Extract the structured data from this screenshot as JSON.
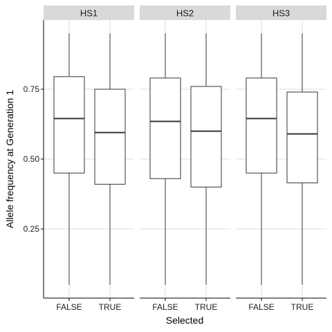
{
  "chart_data": {
    "type": "boxplot",
    "xlabel": "Selected",
    "ylabel": "Allele frequency at Generation 1",
    "ylim": [
      0.0,
      0.99
    ],
    "yticks": [
      0.25,
      0.5,
      0.75
    ],
    "ytick_labels": [
      "0.25",
      "0.50",
      "0.75"
    ],
    "categories": [
      "FALSE",
      "TRUE"
    ],
    "grid": true,
    "colors": {
      "strip_bg": "#d9d9d9",
      "grid": "#dcdcdc",
      "box_stroke": "#333333",
      "axis": "#000000"
    },
    "facets": [
      {
        "label": "HS1",
        "boxes": [
          {
            "category": "FALSE",
            "min": 0.05,
            "q1": 0.45,
            "median": 0.645,
            "q3": 0.795,
            "max": 0.95
          },
          {
            "category": "TRUE",
            "min": 0.05,
            "q1": 0.41,
            "median": 0.595,
            "q3": 0.75,
            "max": 0.95
          }
        ]
      },
      {
        "label": "HS2",
        "boxes": [
          {
            "category": "FALSE",
            "min": 0.05,
            "q1": 0.43,
            "median": 0.635,
            "q3": 0.79,
            "max": 0.95
          },
          {
            "category": "TRUE",
            "min": 0.05,
            "q1": 0.4,
            "median": 0.6,
            "q3": 0.76,
            "max": 0.95
          }
        ]
      },
      {
        "label": "HS3",
        "boxes": [
          {
            "category": "FALSE",
            "min": 0.05,
            "q1": 0.45,
            "median": 0.645,
            "q3": 0.79,
            "max": 0.95
          },
          {
            "category": "TRUE",
            "min": 0.05,
            "q1": 0.415,
            "median": 0.59,
            "q3": 0.74,
            "max": 0.95
          }
        ]
      }
    ]
  }
}
